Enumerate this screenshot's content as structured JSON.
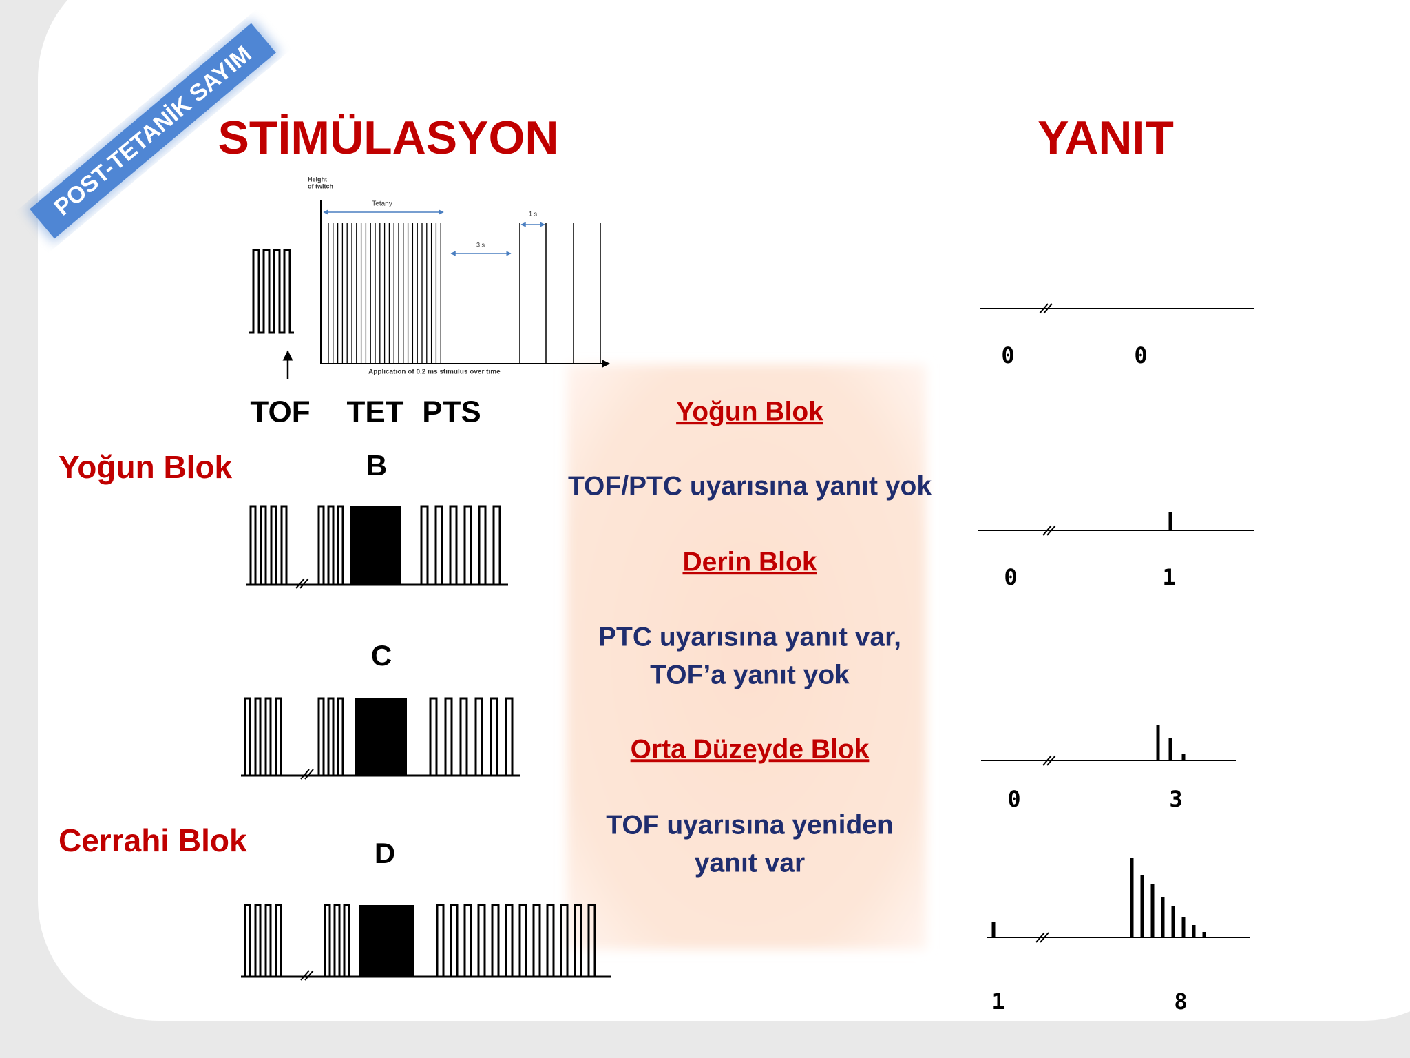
{
  "ribbon": "POST-TETANİK SAYIM",
  "headings": {
    "stimulation": "STİMÜLASYON",
    "response": "YANIT"
  },
  "diagram": {
    "y_axis": [
      "Height",
      "of twitch"
    ],
    "tetany": "Tetany",
    "gap_long": "3 s",
    "gap_short": "1 s",
    "x_axis": "Application of 0.2 ms stimulus over time"
  },
  "phases": [
    "TOF",
    "TET",
    "PTS"
  ],
  "left_labels": [
    "Yoğun Blok",
    "Cerrahi Blok"
  ],
  "rows": [
    "B",
    "C",
    "D"
  ],
  "info": [
    {
      "heading": "Yoğun Blok",
      "lines": [
        "TOF/PTC uyarısına yanıt yok"
      ]
    },
    {
      "heading": "Derin Blok",
      "lines": [
        "PTC uyarısına yanıt var,",
        "TOF’a yanıt yok"
      ]
    },
    {
      "heading": "Orta Düzeyde Blok",
      "lines": [
        "TOF uyarısına yeniden",
        "yanıt var"
      ]
    }
  ],
  "responses": [
    [
      "0",
      "0"
    ],
    [
      "0",
      "1"
    ],
    [
      "0",
      "3"
    ],
    [
      "1",
      "8"
    ]
  ]
}
